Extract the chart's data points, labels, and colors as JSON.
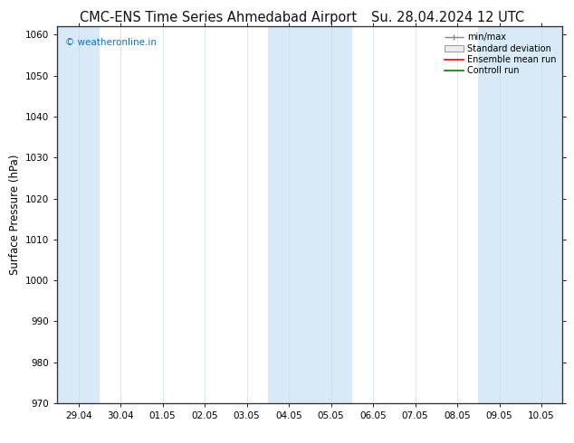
{
  "title_left": "CMC-ENS Time Series Ahmedabad Airport",
  "title_right": "Su. 28.04.2024 12 UTC",
  "ylabel": "Surface Pressure (hPa)",
  "ylim": [
    970,
    1062
  ],
  "yticks": [
    970,
    980,
    990,
    1000,
    1010,
    1020,
    1030,
    1040,
    1050,
    1060
  ],
  "x_start": "2024-04-29",
  "x_end": "2024-05-11",
  "x_tick_labels": [
    "29.04",
    "30.04",
    "01.05",
    "02.05",
    "03.05",
    "04.05",
    "05.05",
    "06.05",
    "07.05",
    "08.05",
    "09.05",
    "10.05"
  ],
  "shade_color": "#d8eaf7",
  "background_color": "#ffffff",
  "watermark": "© weatheronline.in",
  "watermark_color": "#1a6ec4",
  "legend_entries": [
    "min/max",
    "Standard deviation",
    "Ensemble mean run",
    "Controll run"
  ],
  "legend_colors": [
    "#888888",
    "#cccccc",
    "#ff0000",
    "#008000"
  ],
  "title_fontsize": 10.5,
  "axis_fontsize": 8.5,
  "tick_fontsize": 7.5,
  "shaded_day_indices": [
    0,
    6,
    7,
    11,
    12
  ],
  "figsize": [
    6.34,
    4.9
  ],
  "dpi": 100
}
